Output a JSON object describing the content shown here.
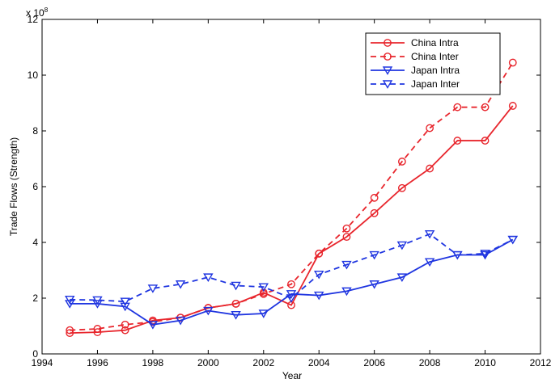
{
  "chart_data": {
    "type": "line",
    "xlabel": "Year",
    "ylabel": "Trade Flows (Strength)",
    "y_multiplier": "x 10",
    "y_multiplier_exp": "8",
    "xlim": [
      1994,
      2012
    ],
    "ylim": [
      0,
      12
    ],
    "xticks": [
      1994,
      1996,
      1998,
      2000,
      2002,
      2004,
      2006,
      2008,
      2010,
      2012
    ],
    "yticks": [
      0,
      2,
      4,
      6,
      8,
      10,
      12
    ],
    "grid": false,
    "legend_position": "top-right",
    "x": [
      1995,
      1996,
      1997,
      1998,
      1999,
      2000,
      2001,
      2002,
      2003,
      2004,
      2005,
      2006,
      2007,
      2008,
      2009,
      2010,
      2011
    ],
    "series": [
      {
        "name": "China Intra",
        "color": "#e8262d",
        "dashed": false,
        "marker": "circle",
        "values": [
          0.75,
          0.78,
          0.85,
          1.2,
          1.3,
          1.65,
          1.8,
          2.2,
          1.75,
          3.6,
          4.2,
          5.05,
          5.95,
          6.65,
          7.65,
          7.65,
          8.9
        ]
      },
      {
        "name": "China Inter",
        "color": "#e8262d",
        "dashed": true,
        "marker": "circle",
        "values": [
          0.85,
          0.9,
          1.05,
          1.15,
          1.3,
          1.65,
          1.8,
          2.15,
          2.5,
          3.6,
          4.5,
          5.6,
          6.9,
          8.1,
          8.85,
          8.85,
          10.45
        ]
      },
      {
        "name": "Japan Intra",
        "color": "#1f35e0",
        "dashed": false,
        "marker": "triangle-down",
        "values": [
          1.8,
          1.8,
          1.7,
          1.05,
          1.2,
          1.55,
          1.4,
          1.45,
          2.15,
          2.1,
          2.25,
          2.5,
          2.75,
          3.3,
          3.55,
          3.55,
          4.1
        ]
      },
      {
        "name": "Japan Inter",
        "color": "#1f35e0",
        "dashed": true,
        "marker": "triangle-down",
        "values": [
          1.95,
          1.93,
          1.88,
          2.35,
          2.5,
          2.75,
          2.45,
          2.4,
          2.0,
          2.85,
          3.2,
          3.55,
          3.9,
          4.3,
          3.55,
          3.6,
          4.1
        ]
      }
    ]
  }
}
